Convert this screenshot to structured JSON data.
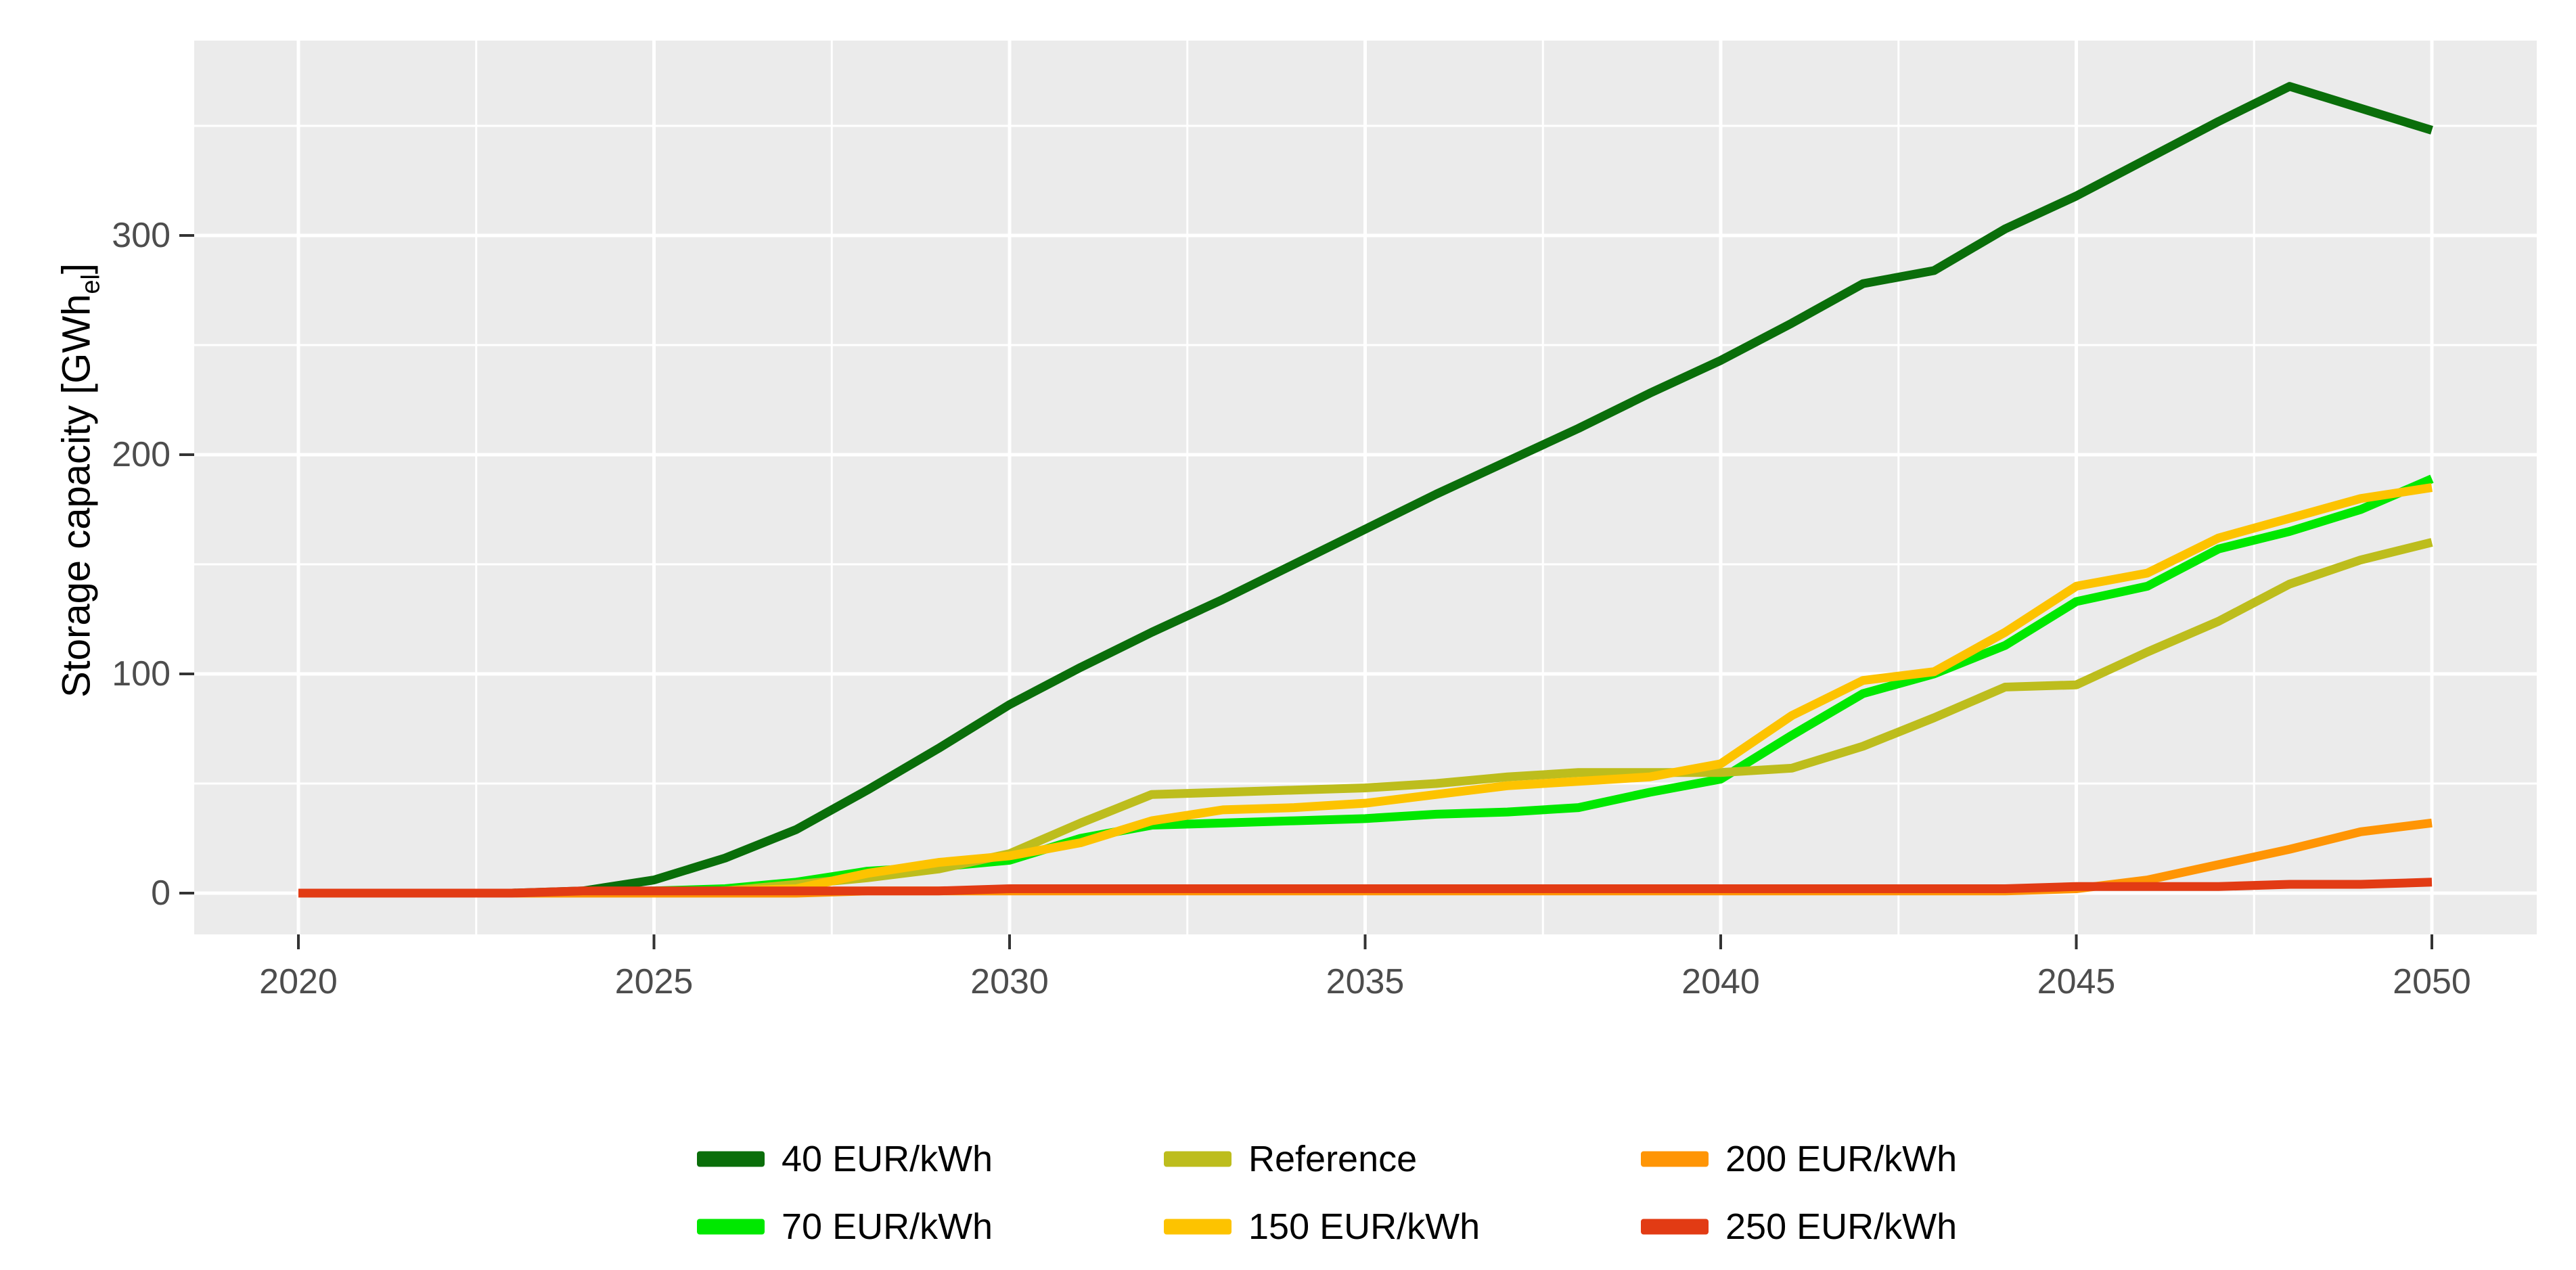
{
  "chart_data": {
    "type": "line",
    "title": "",
    "xlabel": "",
    "ylabel_parts": {
      "main": "Storage capacity [GWh",
      "sub": "el",
      "close": "]"
    },
    "x": [
      2020,
      2021,
      2022,
      2023,
      2024,
      2025,
      2026,
      2027,
      2028,
      2029,
      2030,
      2031,
      2032,
      2033,
      2034,
      2035,
      2036,
      2037,
      2038,
      2039,
      2040,
      2041,
      2042,
      2043,
      2044,
      2045,
      2046,
      2047,
      2048,
      2049,
      2050
    ],
    "xlim": [
      2018.5,
      2051.5
    ],
    "ylim": [
      -18.8,
      389
    ],
    "x_major_ticks": [
      2020,
      2025,
      2030,
      2035,
      2040,
      2045,
      2050
    ],
    "x_minor_ticks": [
      2022.5,
      2027.5,
      2032.5,
      2037.5,
      2042.5,
      2047.5
    ],
    "y_major_ticks": [
      0,
      100,
      200,
      300
    ],
    "y_minor_ticks": [
      50,
      150,
      250,
      350
    ],
    "grid": "white gridlines on grey panel",
    "legend_position": "bottom",
    "legend_rows": [
      [
        "40 EUR/kWh",
        "Reference",
        "200 EUR/kWh"
      ],
      [
        "70 EUR/kWh",
        "150 EUR/kWh",
        "250 EUR/kWh"
      ]
    ],
    "series": [
      {
        "name": "40 EUR/kWh",
        "color": "#0a6e0a",
        "values": [
          0,
          0,
          0,
          0,
          1,
          6,
          16,
          29,
          47,
          66,
          86,
          103,
          119,
          134,
          150,
          166,
          182,
          197,
          212,
          228,
          243,
          260,
          278,
          284,
          303,
          318,
          335,
          352,
          368,
          358,
          348
        ]
      },
      {
        "name": "70 EUR/kWh",
        "color": "#00e800",
        "values": [
          0,
          0,
          0,
          0,
          0,
          1,
          2,
          5,
          10,
          12,
          15,
          25,
          31,
          32,
          33,
          34,
          36,
          37,
          39,
          46,
          52,
          72,
          91,
          100,
          113,
          133,
          140,
          157,
          165,
          175,
          189
        ]
      },
      {
        "name": "Reference",
        "color": "#bdbd1d",
        "values": [
          0,
          0,
          0,
          0,
          0,
          0,
          1,
          4,
          7,
          11,
          18,
          32,
          45,
          46,
          47,
          48,
          50,
          53,
          55,
          55,
          55,
          57,
          67,
          80,
          94,
          95,
          110,
          124,
          141,
          152,
          160
        ]
      },
      {
        "name": "150 EUR/kWh",
        "color": "#fdc300",
        "values": [
          0,
          0,
          0,
          0,
          0,
          0,
          1,
          2,
          9,
          14,
          17,
          23,
          33,
          38,
          39,
          41,
          45,
          49,
          51,
          53,
          59,
          81,
          97,
          101,
          119,
          140,
          146,
          162,
          171,
          180,
          185
        ]
      },
      {
        "name": "200 EUR/kWh",
        "color": "#ff9505",
        "values": [
          0,
          0,
          0,
          0,
          0,
          0,
          0,
          0,
          1,
          1,
          1,
          1,
          1,
          1,
          1,
          1,
          1,
          1,
          1,
          1,
          1,
          1,
          1,
          1,
          1,
          2,
          6,
          13,
          20,
          28,
          32
        ]
      },
      {
        "name": "250 EUR/kWh",
        "color": "#e23b14",
        "values": [
          0,
          0,
          0,
          0,
          1,
          1,
          1,
          1,
          1,
          1,
          2,
          2,
          2,
          2,
          2,
          2,
          2,
          2,
          2,
          2,
          2,
          2,
          2,
          2,
          2,
          3,
          3,
          3,
          4,
          4,
          5
        ]
      }
    ],
    "panel_color": "#ebebeb",
    "gridline_color": "#ffffff",
    "tick_color": "#333333",
    "tick_label_color": "#4d4d4d"
  }
}
